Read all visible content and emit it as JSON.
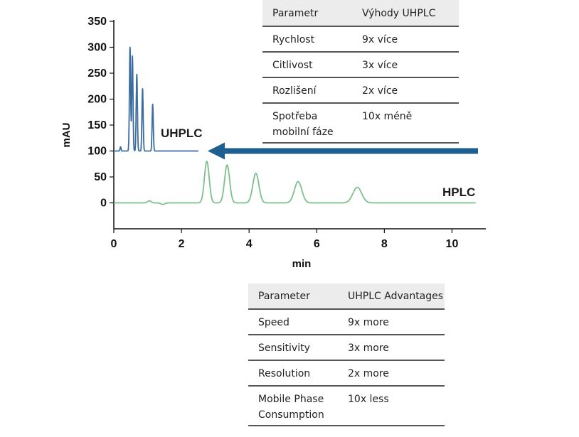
{
  "chart_data": {
    "type": "line",
    "xlabel": "min",
    "ylabel": "mAU",
    "xlim": [
      0,
      11
    ],
    "ylim": [
      -50,
      350
    ],
    "x_ticks": [
      0,
      2,
      4,
      6,
      8,
      10
    ],
    "y_ticks": [
      0,
      50,
      100,
      150,
      200,
      250,
      300,
      350
    ],
    "grid": false,
    "series": [
      {
        "name": "UHPLC",
        "color": "#3d6d9e",
        "baseline": 100,
        "x_range": [
          0,
          2.5
        ],
        "peaks": [
          {
            "x": 0.2,
            "y": 108,
            "w": 0.015
          },
          {
            "x": 0.48,
            "y": 300,
            "w": 0.018
          },
          {
            "x": 0.55,
            "y": 283,
            "w": 0.018
          },
          {
            "x": 0.68,
            "y": 248,
            "w": 0.018
          },
          {
            "x": 0.85,
            "y": 220,
            "w": 0.018
          },
          {
            "x": 1.15,
            "y": 190,
            "w": 0.018
          }
        ]
      },
      {
        "name": "HPLC",
        "color": "#7cc08a",
        "baseline": 0,
        "x_range": [
          0,
          10.7
        ],
        "peaks": [
          {
            "x": 1.05,
            "y": 4,
            "w": 0.05
          },
          {
            "x": 1.45,
            "y": -3,
            "w": 0.06
          },
          {
            "x": 2.75,
            "y": 80,
            "w": 0.07
          },
          {
            "x": 3.35,
            "y": 73,
            "w": 0.075
          },
          {
            "x": 4.2,
            "y": 57,
            "w": 0.09
          },
          {
            "x": 5.45,
            "y": 41,
            "w": 0.11
          },
          {
            "x": 7.2,
            "y": 30,
            "w": 0.13
          }
        ]
      }
    ],
    "arrow_color": "#1f5f8f"
  },
  "table_cz": {
    "header": [
      "Parametr",
      "Výhody UHPLC"
    ],
    "rows": [
      [
        "Rychlost",
        "9x více"
      ],
      [
        "Citlivost",
        "3x více"
      ],
      [
        "Rozlišení",
        "2x více"
      ],
      [
        "Spotřeba mobilní fáze",
        "10x méně"
      ]
    ]
  },
  "table_en": {
    "header": [
      "Parameter",
      "UHPLC Advantages"
    ],
    "rows": [
      [
        "Speed",
        "9x more"
      ],
      [
        "Sensitivity",
        "3x more"
      ],
      [
        "Resolution",
        "2x more"
      ],
      [
        "Mobile Phase Consumption",
        "10x less"
      ]
    ]
  }
}
